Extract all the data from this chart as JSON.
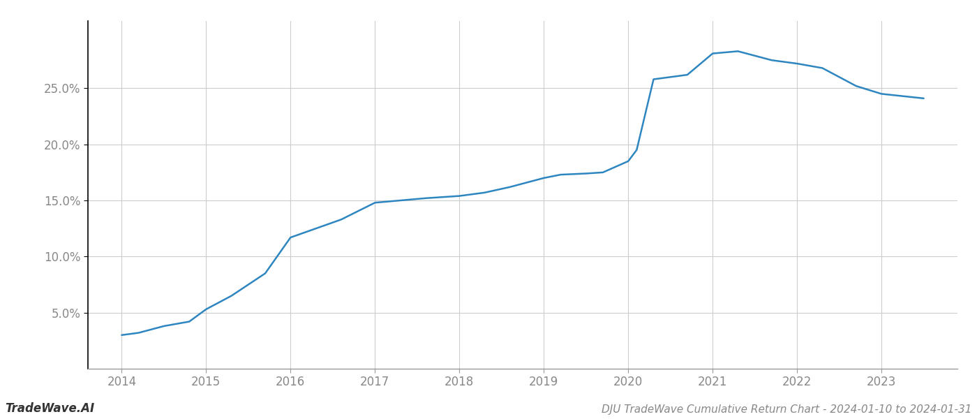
{
  "title": "DJU TradeWave Cumulative Return Chart - 2024-01-10 to 2024-01-31",
  "watermark": "TradeWave.AI",
  "line_color": "#2e86c1",
  "line_width": 1.8,
  "background_color": "#ffffff",
  "grid_color": "#cccccc",
  "x_years": [
    2014,
    2015,
    2016,
    2017,
    2018,
    2019,
    2020,
    2021,
    2022,
    2023
  ],
  "x_values": [
    2014.0,
    2014.2,
    2014.5,
    2014.8,
    2015.0,
    2015.3,
    2015.7,
    2016.0,
    2016.3,
    2016.6,
    2017.0,
    2017.3,
    2017.6,
    2018.0,
    2018.3,
    2018.6,
    2019.0,
    2019.2,
    2019.5,
    2019.7,
    2020.0,
    2020.1,
    2020.3,
    2020.7,
    2021.0,
    2021.3,
    2021.7,
    2022.0,
    2022.3,
    2022.7,
    2023.0,
    2023.5
  ],
  "y_values": [
    3.0,
    3.2,
    3.8,
    4.2,
    5.3,
    6.5,
    8.5,
    11.7,
    12.5,
    13.3,
    14.8,
    15.0,
    15.2,
    15.4,
    15.7,
    16.2,
    17.0,
    17.3,
    17.4,
    17.5,
    18.5,
    19.5,
    25.8,
    26.2,
    28.1,
    28.3,
    27.5,
    27.2,
    26.8,
    25.2,
    24.5,
    24.1
  ],
  "ylim": [
    0,
    31
  ],
  "yticks": [
    5.0,
    10.0,
    15.0,
    20.0,
    25.0
  ],
  "ytick_labels": [
    "5.0%",
    "10.0%",
    "15.0%",
    "20.0%",
    "25.0%"
  ],
  "title_fontsize": 11,
  "watermark_fontsize": 12,
  "tick_fontsize": 12,
  "tick_color": "#888888",
  "left_spine_color": "#000000",
  "bottom_spine_color": "#999999"
}
